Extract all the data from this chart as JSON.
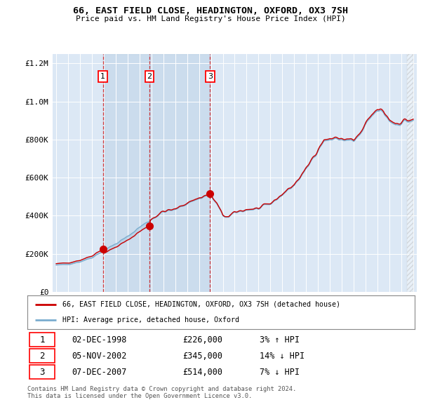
{
  "title": "66, EAST FIELD CLOSE, HEADINGTON, OXFORD, OX3 7SH",
  "subtitle": "Price paid vs. HM Land Registry's House Price Index (HPI)",
  "legend_label_red": "66, EAST FIELD CLOSE, HEADINGTON, OXFORD, OX3 7SH (detached house)",
  "legend_label_blue": "HPI: Average price, detached house, Oxford",
  "t1_year": 1998.92,
  "t1_price": 226000,
  "t2_year": 2002.84,
  "t2_price": 345000,
  "t3_year": 2007.93,
  "t3_price": 514000,
  "copyright": "Contains HM Land Registry data © Crown copyright and database right 2024.\nThis data is licensed under the Open Government Licence v3.0.",
  "red_color": "#cc0000",
  "blue_color": "#7aadcf",
  "shade_color": "#c5d8ec",
  "ylim": [
    0,
    1250000
  ],
  "yticks": [
    0,
    200000,
    400000,
    600000,
    800000,
    1000000,
    1200000
  ],
  "row_data": [
    [
      1,
      "02-DEC-1998",
      "£226,000",
      "3% ↑ HPI"
    ],
    [
      2,
      "05-NOV-2002",
      "£345,000",
      "14% ↓ HPI"
    ],
    [
      3,
      "07-DEC-2007",
      "£514,000",
      "7% ↓ HPI"
    ]
  ]
}
